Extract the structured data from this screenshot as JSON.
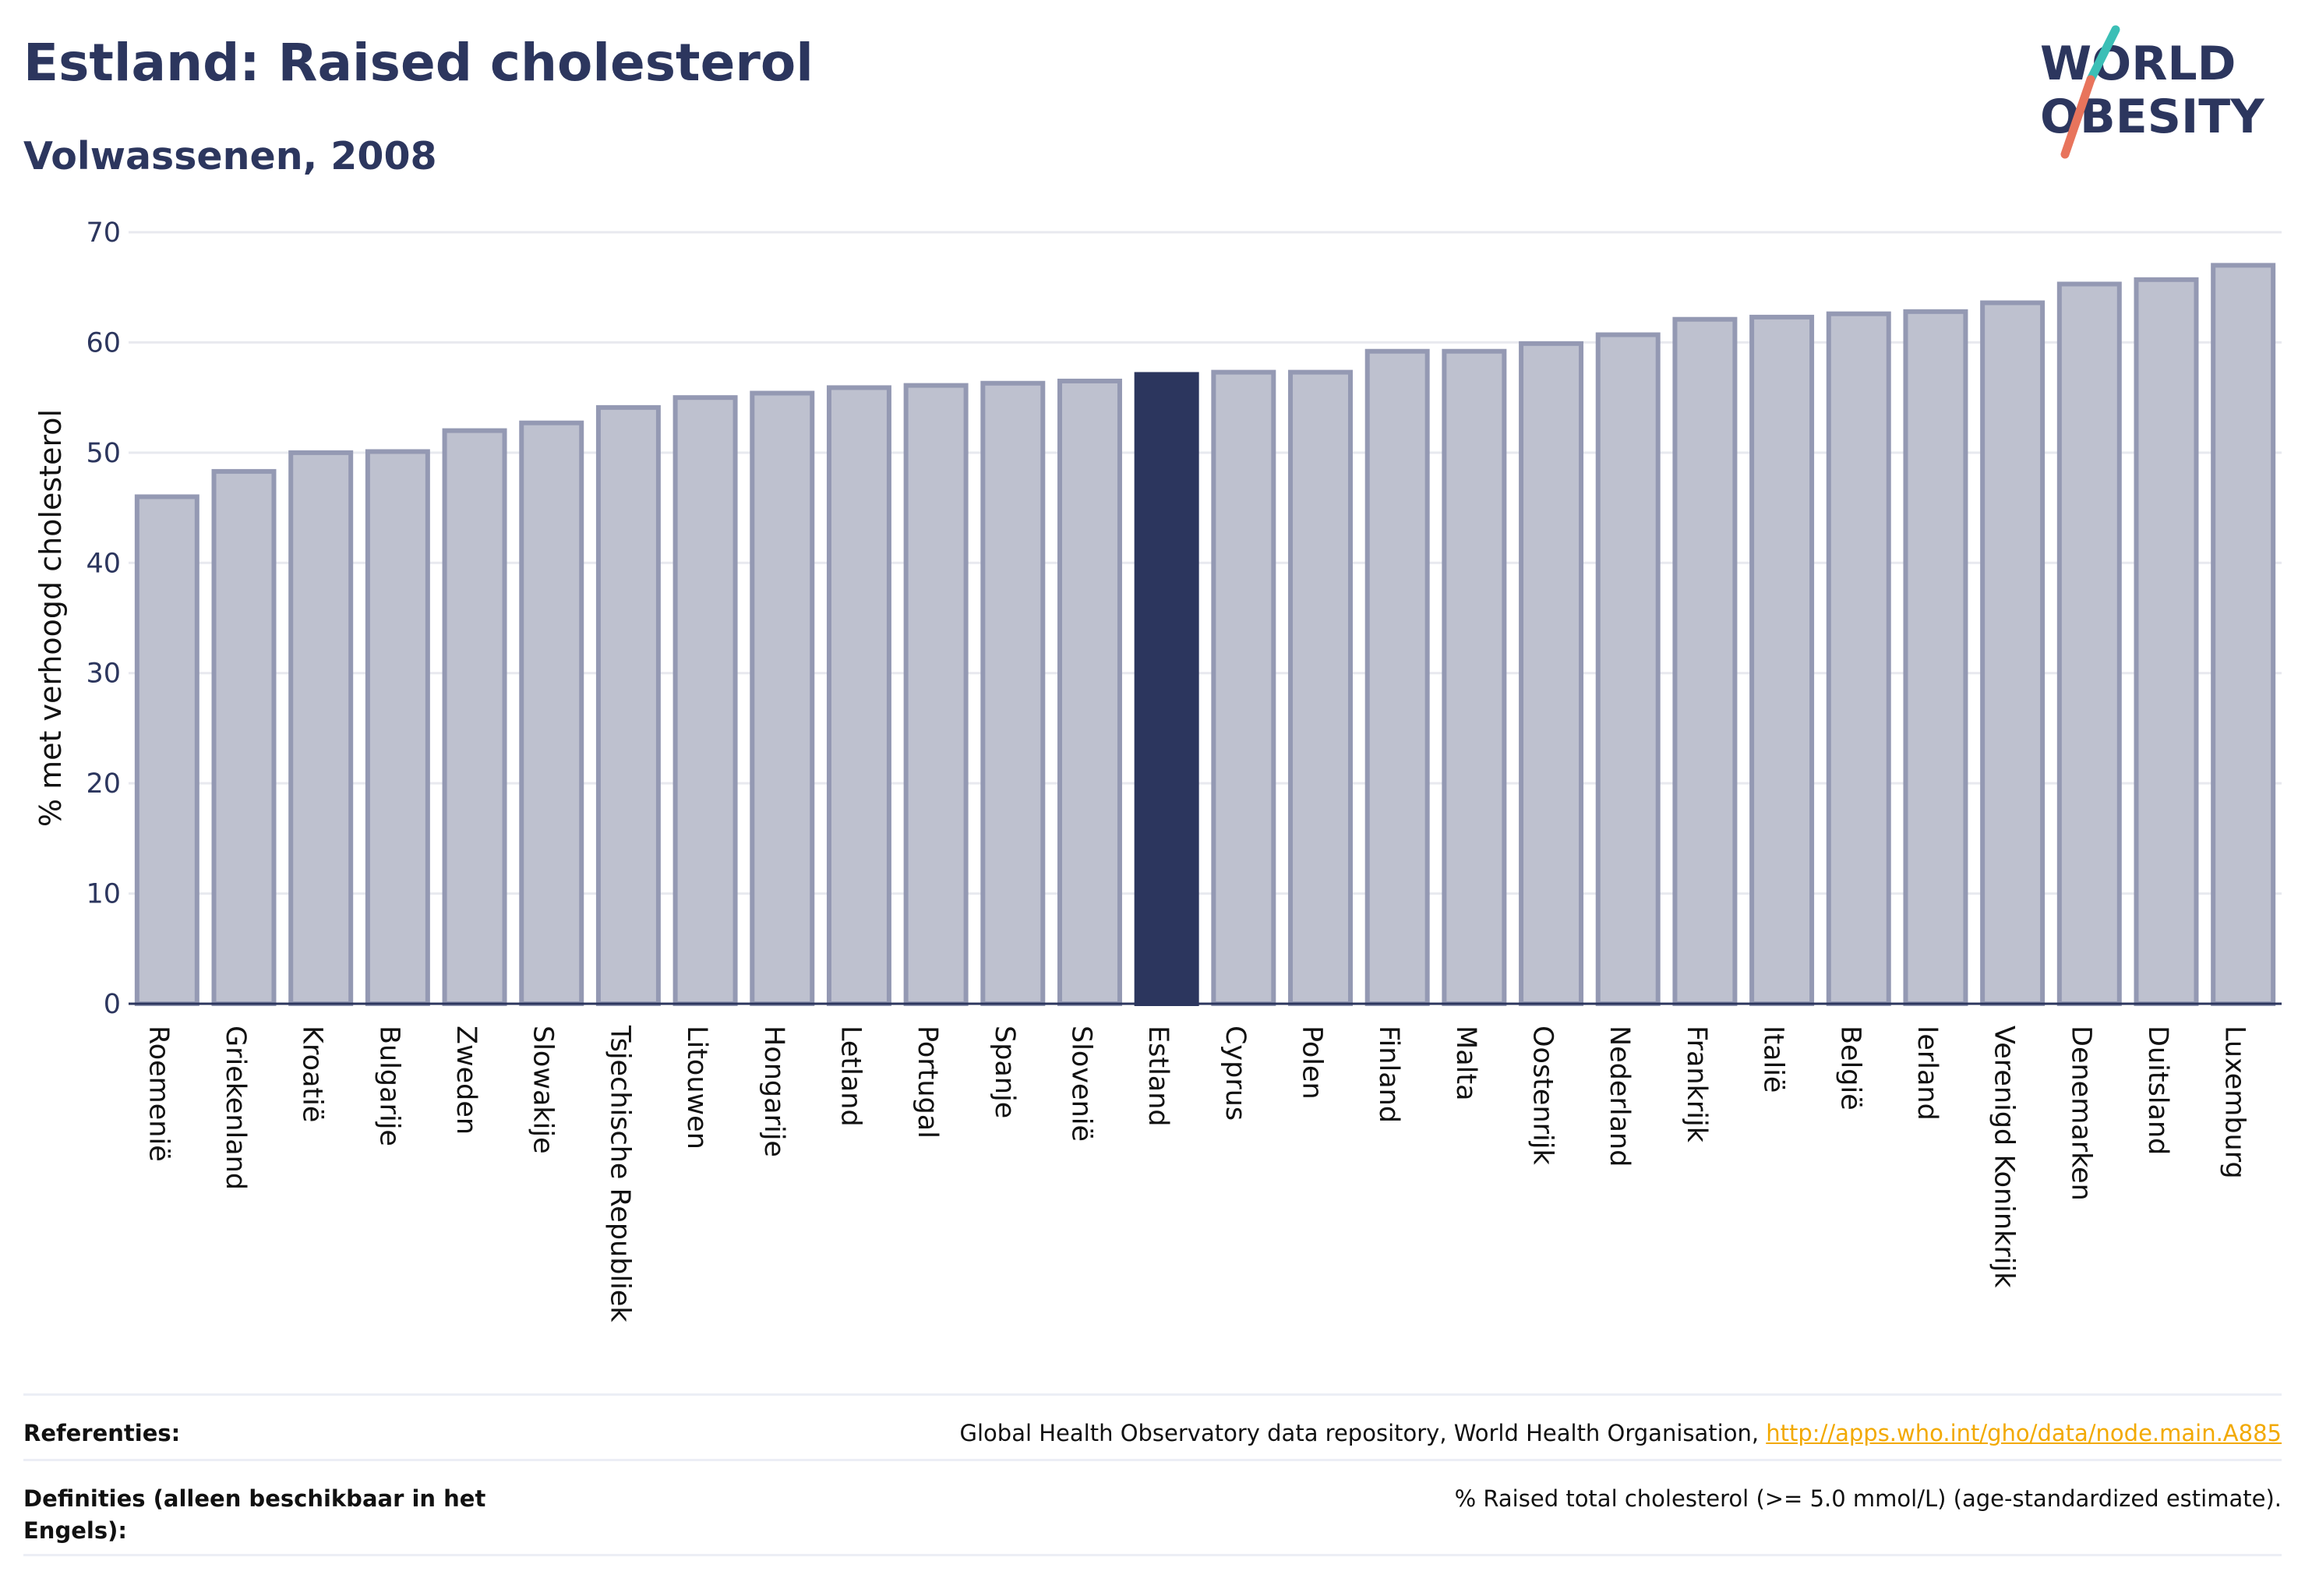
{
  "header": {
    "title": "Estland: Raised cholesterol",
    "subtitle": "Volwassenen, 2008"
  },
  "logo": {
    "line1": "WORLD",
    "line2": "OBESITY",
    "colors": {
      "text": "#2c365e",
      "slash_top": "#3bbfb6",
      "slash_bottom": "#e8745c"
    }
  },
  "chart_data": {
    "type": "bar",
    "ylabel": "% met verhoogd cholesterol",
    "ylim": [
      0,
      70
    ],
    "yticks": [
      0,
      10,
      20,
      30,
      40,
      50,
      60,
      70
    ],
    "grid": true,
    "highlight": "Estland",
    "colors": {
      "bar": "#bec1cf",
      "bar_border": "#9499b3",
      "highlight": "#2c365e",
      "grid": "#e8e9ef",
      "axis": "#2c365e"
    },
    "categories": [
      "Roemenië",
      "Griekenland",
      "Kroatië",
      "Bulgarije",
      "Zweden",
      "Slowakije",
      "Tsjechische Republiek",
      "Litouwen",
      "Hongarije",
      "Letland",
      "Portugal",
      "Spanje",
      "Slovenië",
      "Estland",
      "Cyprus",
      "Polen",
      "Finland",
      "Malta",
      "Oostenrijk",
      "Nederland",
      "Frankrijk",
      "Italië",
      "België",
      "Ierland",
      "Verenigd Koninkrijk",
      "Denemarken",
      "Duitsland",
      "Luxemburg"
    ],
    "values": [
      46.0,
      48.3,
      50.0,
      50.1,
      52.0,
      52.7,
      54.1,
      55.0,
      55.4,
      55.9,
      56.1,
      56.3,
      56.5,
      57.1,
      57.3,
      57.3,
      59.2,
      59.2,
      59.9,
      60.7,
      62.1,
      62.3,
      62.6,
      62.8,
      63.6,
      65.3,
      65.7,
      67.0
    ]
  },
  "footer": {
    "references_label": "Referenties:",
    "references_text": "Global Health Observatory data repository, World Health Organisation, ",
    "references_link": "http://apps.who.int/gho/data/node.main.A885",
    "definitions_label": "Definities (alleen beschikbaar in het Engels):",
    "definitions_text": "% Raised total cholesterol (>= 5.0 mmol/L) (age-standardized estimate)."
  }
}
